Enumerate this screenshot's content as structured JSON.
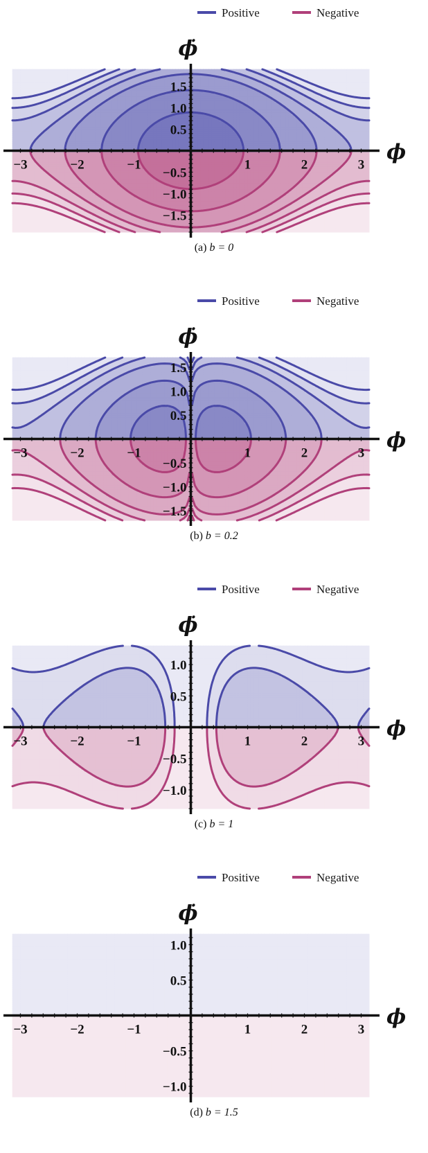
{
  "chart_data": [
    {
      "type": "contour",
      "b": 0,
      "caption_label": "(a)",
      "caption_expr": "b = 0",
      "legend": [
        {
          "name": "Positive",
          "color": "#4a4aa8"
        },
        {
          "name": "Negative",
          "color": "#b0407a"
        }
      ],
      "xlabel": "ϕ",
      "ylabel": "ϕ̇",
      "xlim": [
        -3.14,
        3.14
      ],
      "ylim": [
        -1.9,
        1.9
      ],
      "x_ticks": [
        -3,
        -2,
        -1,
        1,
        2,
        3
      ],
      "x_tick_labels": [
        "−3",
        "−2",
        "−1",
        "1",
        "2",
        "3"
      ],
      "y_ticks": [
        1.5,
        1.0,
        0.5,
        -0.5,
        -1.0,
        -1.5
      ],
      "y_tick_labels": [
        "1.5",
        "1.0",
        "0.5",
        "−0.5",
        "−1.0",
        "−1.5"
      ],
      "contour_levels": [
        -0.6,
        0,
        0.6,
        0.95,
        1.25,
        1.5,
        1.75
      ]
    },
    {
      "type": "contour",
      "b": 0.2,
      "caption_label": "(b)",
      "caption_expr": "b = 0.2",
      "legend": [
        {
          "name": "Positive",
          "color": "#4a4aa8"
        },
        {
          "name": "Negative",
          "color": "#b0407a"
        }
      ],
      "xlabel": "ϕ",
      "ylabel": "ϕ̇",
      "xlim": [
        -3.14,
        3.14
      ],
      "ylim": [
        -1.7,
        1.7
      ],
      "x_ticks": [
        -3,
        -2,
        -1,
        1,
        2,
        3
      ],
      "x_tick_labels": [
        "−3",
        "−2",
        "−1",
        "1",
        "2",
        "3"
      ],
      "y_ticks": [
        1.5,
        1.0,
        0.5,
        -0.5,
        -1.0,
        -1.5
      ],
      "y_tick_labels": [
        "1.5",
        "1.0",
        "0.5",
        "−0.5",
        "−1.0",
        "−1.5"
      ],
      "contour_levels": [
        -0.8,
        -0.5,
        0,
        0.5,
        0.8,
        1.05,
        1.3
      ]
    },
    {
      "type": "contour",
      "b": 1,
      "caption_label": "(c)",
      "caption_expr": "b = 1",
      "legend": [
        {
          "name": "Positive",
          "color": "#4a4aa8"
        },
        {
          "name": "Negative",
          "color": "#b0407a"
        }
      ],
      "xlabel": "ϕ",
      "ylabel": "ϕ̇",
      "xlim": [
        -3.14,
        3.14
      ],
      "ylim": [
        -1.3,
        1.3
      ],
      "x_ticks": [
        -3,
        -2,
        -1,
        1,
        2,
        3
      ],
      "x_tick_labels": [
        "−3",
        "−2",
        "−1",
        "1",
        "2",
        "3"
      ],
      "y_ticks": [
        1.0,
        0.5,
        -0.5,
        -1.0
      ],
      "y_tick_labels": [
        "1.0",
        "0.5",
        "−0.5",
        "−1.0"
      ],
      "contour_levels": [
        -1.8,
        -1.1,
        -0.55,
        -0.1,
        0.3
      ]
    },
    {
      "type": "contour",
      "b": 1.5,
      "caption_label": "(d)",
      "caption_expr": "b = 1.5",
      "legend": [
        {
          "name": "Positive",
          "color": "#4a4aa8"
        },
        {
          "name": "Negative",
          "color": "#b0407a"
        }
      ],
      "xlabel": "ϕ",
      "ylabel": "ϕ̇",
      "xlim": [
        -3.14,
        3.14
      ],
      "ylim": [
        -1.15,
        1.15
      ],
      "x_ticks": [
        -3,
        -2,
        -1,
        1,
        2,
        3
      ],
      "x_tick_labels": [
        "−3",
        "−2",
        "−1",
        "1",
        "2",
        "3"
      ],
      "y_ticks": [
        1.0,
        0.5,
        -0.5,
        -1.0
      ],
      "y_tick_labels": [
        "1.0",
        "0.5",
        "−0.5",
        "−1.0"
      ],
      "contour_levels": [
        -3.0,
        -2.2,
        -1.5,
        -0.85
      ]
    }
  ]
}
